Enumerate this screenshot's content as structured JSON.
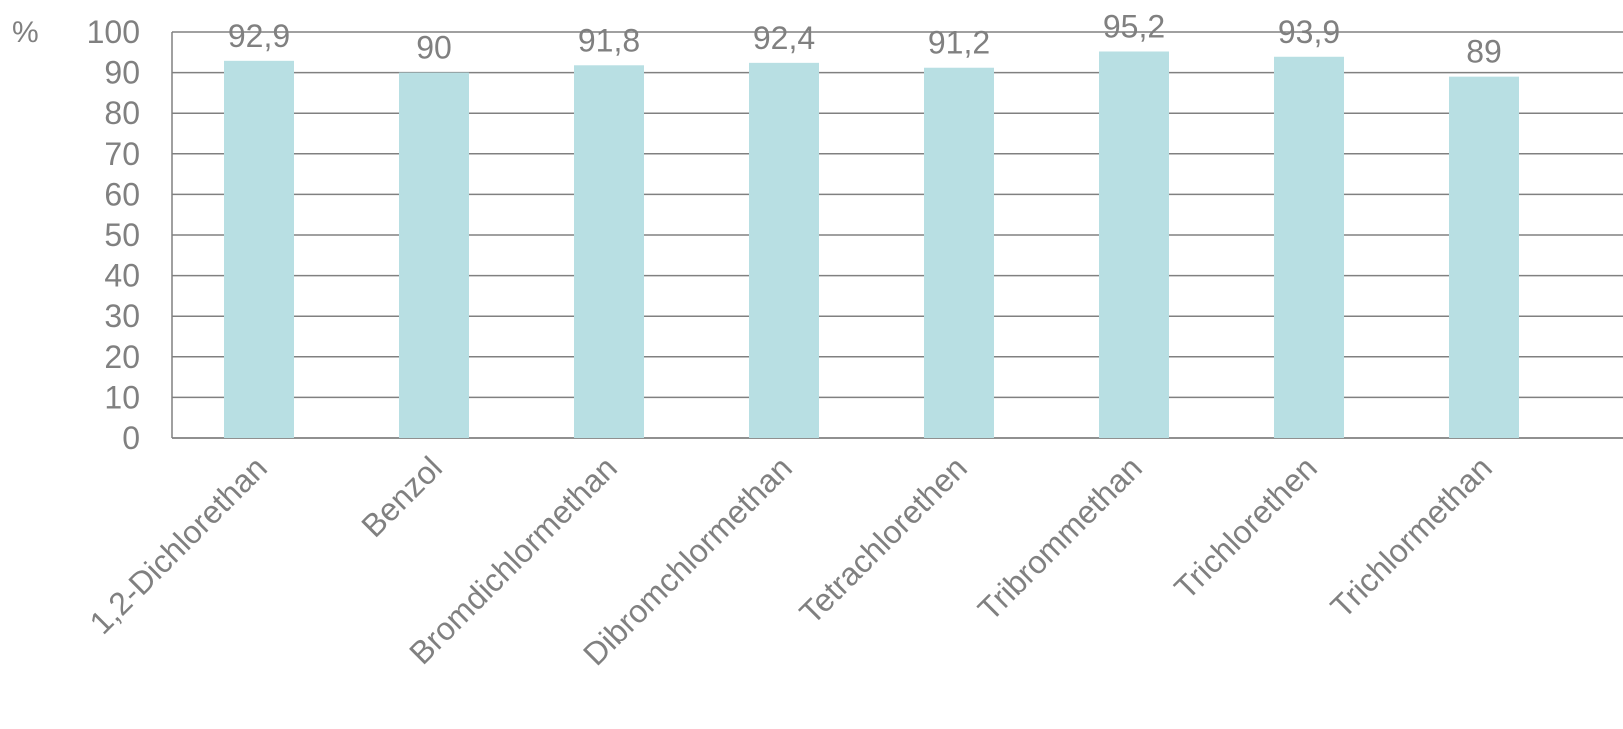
{
  "chart_data": {
    "type": "bar",
    "unit_label": "%",
    "categories": [
      "1,2-Dichlorethan",
      "Benzol",
      "Bromdichlormethan",
      "Dibromchlormethan",
      "Tetrachlorethen",
      "Tribrommethan",
      "Trichlorethen",
      "Trichlormethan"
    ],
    "values": [
      92.9,
      90,
      91.8,
      92.4,
      91.2,
      95.2,
      93.9,
      89
    ],
    "data_labels": [
      "92,9",
      "90",
      "91,8",
      "92,4",
      "91,2",
      "95,2",
      "93,9",
      "89"
    ],
    "yticks": [
      "0",
      "10",
      "20",
      "30",
      "40",
      "50",
      "60",
      "70",
      "80",
      "90",
      "100"
    ],
    "ylim": [
      0,
      100
    ],
    "grid": true,
    "colors": {
      "bar": "#b8dfe3",
      "grid": "#808080",
      "text": "#808080"
    }
  }
}
